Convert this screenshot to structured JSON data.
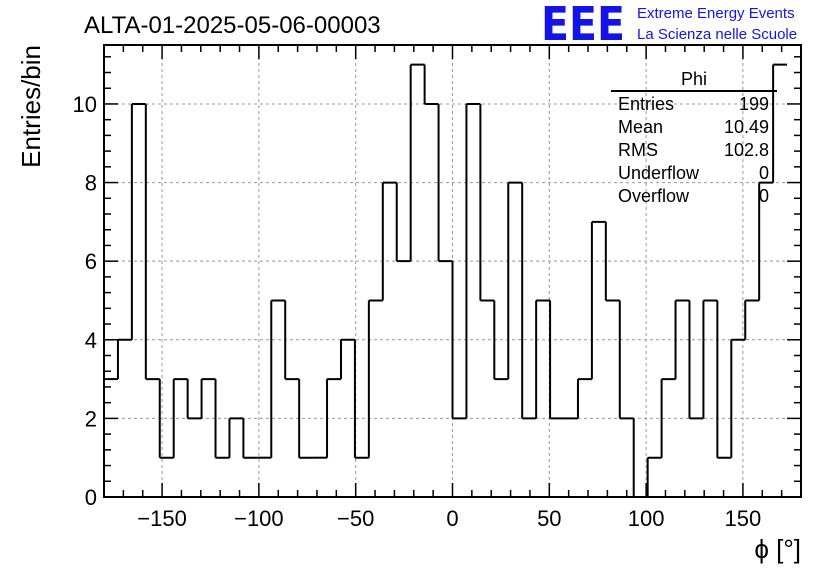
{
  "title": "ALTA-01-2025-05-06-00003",
  "logo": {
    "mark": "EEE",
    "line1": "Extreme Energy Events",
    "line2": "La Scienza nelle Scuole",
    "color": "#1414e6"
  },
  "stats": {
    "name": "Phi",
    "rows": [
      {
        "label": "Entries",
        "value": "199"
      },
      {
        "label": "Mean",
        "value": "10.49"
      },
      {
        "label": "RMS",
        "value": "102.8"
      },
      {
        "label": "Underflow",
        "value": "0"
      },
      {
        "label": "Overflow",
        "value": "0"
      }
    ]
  },
  "chart_data": {
    "type": "histogram",
    "title": "ALTA-01-2025-05-06-00003",
    "xlabel": "ϕ [°]",
    "ylabel": "Entries/bin",
    "xlim": [
      -180,
      180
    ],
    "ylim": [
      0,
      11.5
    ],
    "bin_width": 7.2,
    "bin_edges_start": -180,
    "values": [
      3,
      4,
      10,
      3,
      1,
      3,
      2,
      3,
      1,
      2,
      1,
      1,
      5,
      3,
      1,
      1,
      3,
      4,
      1,
      5,
      8,
      6,
      11,
      10,
      6,
      2,
      10,
      5,
      3,
      8,
      2,
      5,
      2,
      2,
      3,
      7,
      5,
      2,
      0,
      1,
      3,
      5,
      2,
      5,
      1,
      4,
      5,
      8,
      11
    ],
    "xticks": [
      -150,
      -100,
      -50,
      0,
      50,
      100,
      150
    ],
    "yticks": [
      0,
      2,
      4,
      6,
      8,
      10
    ],
    "grid": true,
    "legend": "top-right"
  }
}
